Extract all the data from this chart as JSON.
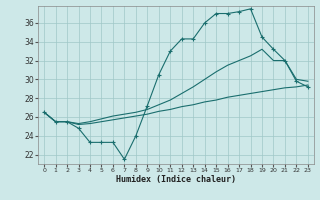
{
  "xlabel": "Humidex (Indice chaleur)",
  "xlim": [
    -0.5,
    23.5
  ],
  "ylim": [
    21.0,
    37.8
  ],
  "yticks": [
    22,
    24,
    26,
    28,
    30,
    32,
    34,
    36
  ],
  "xticks": [
    0,
    1,
    2,
    3,
    4,
    5,
    6,
    7,
    8,
    9,
    10,
    11,
    12,
    13,
    14,
    15,
    16,
    17,
    18,
    19,
    20,
    21,
    22,
    23
  ],
  "background_color": "#cde8e8",
  "grid_color": "#a0c8c8",
  "line_color": "#1a6e6e",
  "lines": [
    {
      "x": [
        0,
        1,
        2,
        3,
        4,
        5,
        6,
        7,
        8,
        9,
        10,
        11,
        12,
        13,
        14,
        15,
        16,
        17,
        18,
        19,
        20,
        21,
        22,
        23
      ],
      "y": [
        26.5,
        25.5,
        25.5,
        24.8,
        23.3,
        23.3,
        23.3,
        21.5,
        24.0,
        27.2,
        30.5,
        33.0,
        34.3,
        34.3,
        36.0,
        37.0,
        37.0,
        37.2,
        37.5,
        34.5,
        33.2,
        32.0,
        29.8,
        29.2
      ],
      "marker": true
    },
    {
      "x": [
        0,
        1,
        2,
        3,
        4,
        5,
        6,
        7,
        8,
        9,
        10,
        11,
        12,
        13,
        14,
        15,
        16,
        17,
        18,
        19,
        20,
        21,
        22,
        23
      ],
      "y": [
        26.5,
        25.5,
        25.5,
        25.2,
        25.3,
        25.5,
        25.7,
        25.9,
        26.1,
        26.3,
        26.6,
        26.8,
        27.1,
        27.3,
        27.6,
        27.8,
        28.1,
        28.3,
        28.5,
        28.7,
        28.9,
        29.1,
        29.2,
        29.4
      ],
      "marker": false
    },
    {
      "x": [
        0,
        1,
        2,
        3,
        4,
        5,
        6,
        7,
        8,
        9,
        10,
        11,
        12,
        13,
        14,
        15,
        16,
        17,
        18,
        19,
        20,
        21,
        22,
        23
      ],
      "y": [
        26.5,
        25.5,
        25.5,
        25.3,
        25.5,
        25.8,
        26.1,
        26.3,
        26.5,
        26.8,
        27.3,
        27.8,
        28.5,
        29.2,
        30.0,
        30.8,
        31.5,
        32.0,
        32.5,
        33.2,
        32.0,
        32.0,
        30.0,
        29.8
      ],
      "marker": false
    }
  ]
}
